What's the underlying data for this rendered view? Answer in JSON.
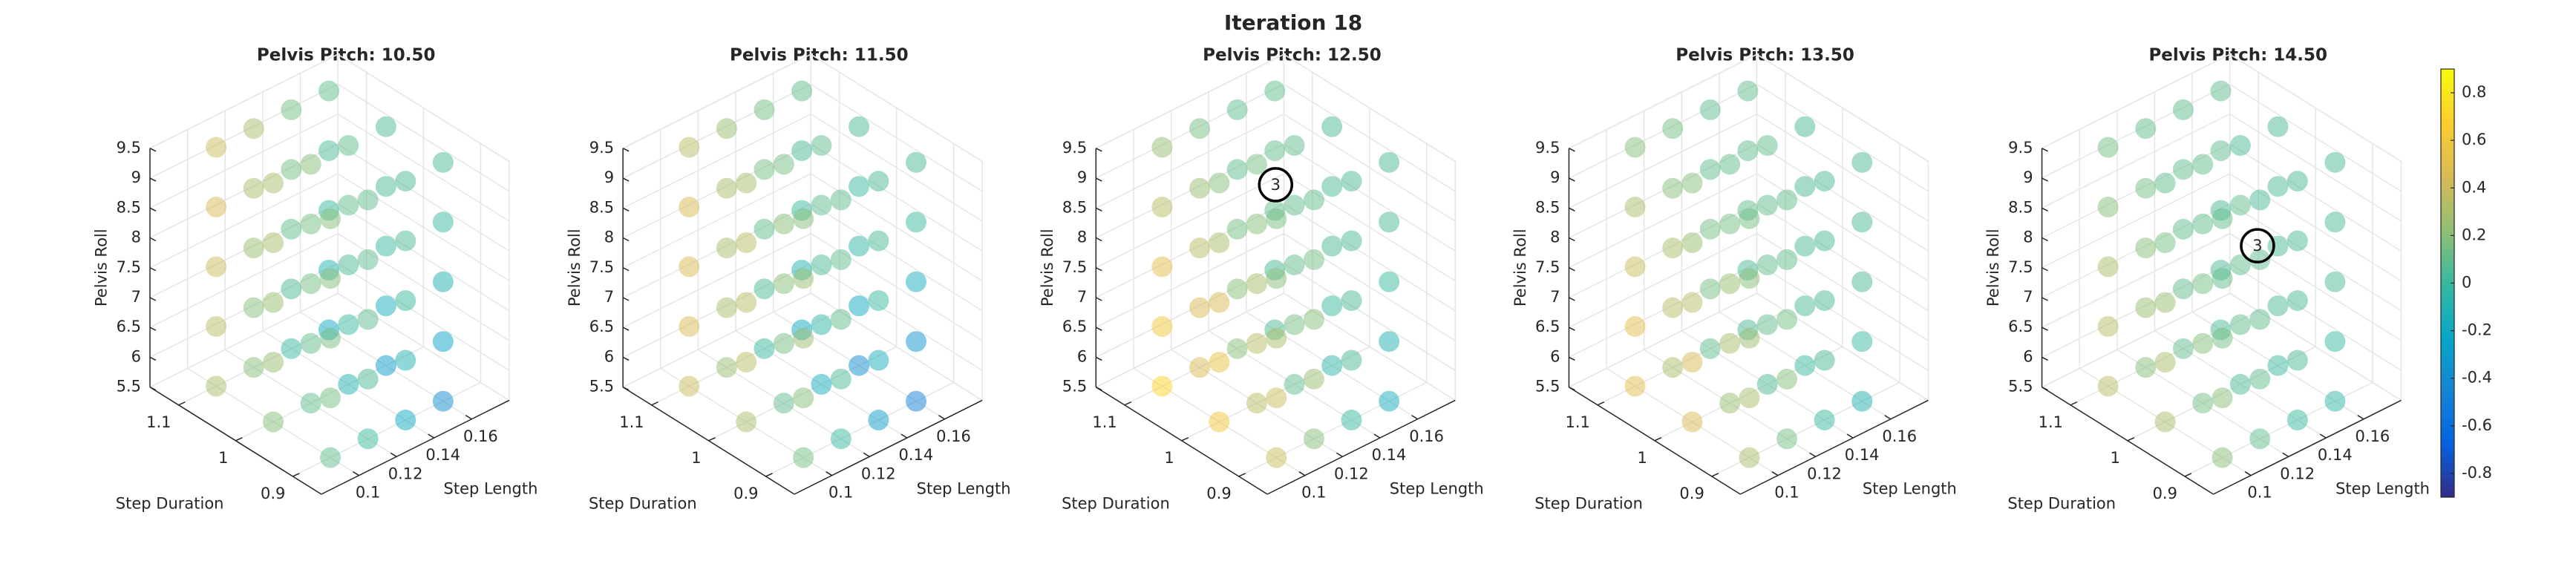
{
  "chart_data": {
    "type": "scatter3d",
    "title": "Iteration 18",
    "xlabel": "Step Length",
    "ylabel": "Step Duration",
    "zlabel": "Pelvis Roll",
    "xlim": [
      0.08,
      0.18
    ],
    "ylim": [
      0.85,
      1.15
    ],
    "zlim": [
      5.5,
      9.5
    ],
    "xticks": [
      0.1,
      0.12,
      0.14,
      0.16
    ],
    "yticks": [
      0.9,
      1,
      1.1
    ],
    "zticks": [
      5.5,
      6,
      6.5,
      7,
      7.5,
      8,
      8.5,
      9,
      9.5
    ],
    "grid": true,
    "step_length": [
      0.1,
      0.12,
      0.14,
      0.16
    ],
    "step_duration": [
      0.9,
      1,
      1.1
    ],
    "pelvis_roll": [
      5.5,
      6.5,
      7.5,
      8.5,
      9.5
    ],
    "colorbar": {
      "colormap": "parula",
      "clim": [
        -0.9,
        0.9
      ],
      "ticks": [
        -0.8,
        -0.6,
        -0.4,
        -0.2,
        0,
        0.2,
        0.4,
        0.6,
        0.8
      ]
    },
    "subplots": [
      {
        "title": "Pelvis Pitch: 10.50",
        "values": [
          [
            [
              0.1,
              0.0,
              -0.2,
              -0.4
            ],
            [
              0.2,
              0.1,
              -0.1,
              -0.3
            ],
            [
              0.3,
              0.2,
              0.0,
              -0.2
            ]
          ],
          [
            [
              0.15,
              0.05,
              -0.1,
              -0.25
            ],
            [
              0.25,
              0.1,
              0.0,
              -0.15
            ],
            [
              0.35,
              0.2,
              0.05,
              -0.1
            ]
          ],
          [
            [
              0.15,
              0.1,
              0.0,
              -0.1
            ],
            [
              0.25,
              0.15,
              0.05,
              0.0
            ],
            [
              0.4,
              0.25,
              0.1,
              0.0
            ]
          ],
          [
            [
              0.2,
              0.1,
              0.05,
              0.0
            ],
            [
              0.3,
              0.15,
              0.1,
              0.05
            ],
            [
              0.45,
              0.3,
              0.15,
              0.05
            ]
          ],
          [
            [
              0.2,
              0.1,
              0.05,
              0.05
            ],
            [
              0.3,
              0.2,
              0.1,
              0.05
            ],
            [
              0.4,
              0.3,
              0.15,
              0.1
            ]
          ]
        ]
      },
      {
        "title": "Pelvis Pitch: 11.50",
        "values": [
          [
            [
              0.15,
              0.0,
              -0.3,
              -0.5
            ],
            [
              0.3,
              0.1,
              -0.15,
              -0.4
            ],
            [
              0.4,
              0.25,
              0.0,
              -0.2
            ]
          ],
          [
            [
              0.2,
              0.05,
              -0.15,
              -0.35
            ],
            [
              0.35,
              0.15,
              -0.05,
              -0.2
            ],
            [
              0.45,
              0.3,
              0.05,
              -0.1
            ]
          ],
          [
            [
              0.25,
              0.1,
              0.0,
              -0.15
            ],
            [
              0.35,
              0.2,
              0.05,
              -0.05
            ],
            [
              0.45,
              0.3,
              0.1,
              0.0
            ]
          ],
          [
            [
              0.25,
              0.1,
              0.05,
              0.0
            ],
            [
              0.35,
              0.2,
              0.1,
              0.0
            ],
            [
              0.45,
              0.3,
              0.15,
              0.05
            ]
          ],
          [
            [
              0.2,
              0.1,
              0.05,
              0.05
            ],
            [
              0.3,
              0.15,
              0.1,
              0.05
            ],
            [
              0.35,
              0.25,
              0.15,
              0.1
            ]
          ]
        ]
      },
      {
        "title": "Pelvis Pitch: 12.50",
        "highlight": {
          "label": "3",
          "step_length": 0.13,
          "step_duration": 1,
          "pelvis_roll": 9
        },
        "values": [
          [
            [
              0.4,
              0.2,
              0.0,
              -0.15
            ],
            [
              0.6,
              0.35,
              0.1,
              -0.05
            ],
            [
              0.7,
              0.45,
              0.2,
              0.05
            ]
          ],
          [
            [
              0.4,
              0.25,
              0.05,
              -0.1
            ],
            [
              0.55,
              0.35,
              0.15,
              0.0
            ],
            [
              0.6,
              0.45,
              0.2,
              0.05
            ]
          ],
          [
            [
              0.3,
              0.2,
              0.05,
              0.0
            ],
            [
              0.45,
              0.3,
              0.1,
              0.05
            ],
            [
              0.5,
              0.35,
              0.15,
              0.1
            ]
          ],
          [
            [
              0.2,
              0.15,
              0.05,
              0.05
            ],
            [
              0.3,
              0.2,
              0.1,
              0.05
            ],
            [
              0.35,
              0.25,
              0.1,
              0.1
            ]
          ],
          [
            [
              0.15,
              0.1,
              0.05,
              0.05
            ],
            [
              0.2,
              0.15,
              0.1,
              0.05
            ],
            [
              0.25,
              0.15,
              0.1,
              0.1
            ]
          ]
        ]
      },
      {
        "title": "Pelvis Pitch: 13.50",
        "values": [
          [
            [
              0.3,
              0.15,
              0.0,
              -0.1
            ],
            [
              0.45,
              0.25,
              0.05,
              0.0
            ],
            [
              0.5,
              0.3,
              0.1,
              0.05
            ]
          ],
          [
            [
              0.3,
              0.2,
              0.05,
              0.0
            ],
            [
              0.45,
              0.3,
              0.1,
              0.05
            ],
            [
              0.5,
              0.35,
              0.15,
              0.05
            ]
          ],
          [
            [
              0.25,
              0.15,
              0.05,
              0.05
            ],
            [
              0.35,
              0.25,
              0.1,
              0.05
            ],
            [
              0.4,
              0.3,
              0.15,
              0.1
            ]
          ],
          [
            [
              0.2,
              0.1,
              0.05,
              0.05
            ],
            [
              0.25,
              0.15,
              0.1,
              0.05
            ],
            [
              0.3,
              0.2,
              0.1,
              0.1
            ]
          ],
          [
            [
              0.15,
              0.1,
              0.05,
              0.05
            ],
            [
              0.2,
              0.1,
              0.1,
              0.05
            ],
            [
              0.2,
              0.15,
              0.1,
              0.1
            ]
          ]
        ]
      },
      {
        "title": "Pelvis Pitch: 14.50",
        "highlight": {
          "label": "3",
          "step_length": 0.14,
          "step_duration": 0.97,
          "pelvis_roll": 8
        },
        "values": [
          [
            [
              0.2,
              0.1,
              0.0,
              -0.05
            ],
            [
              0.3,
              0.15,
              0.05,
              0.0
            ],
            [
              0.35,
              0.2,
              0.1,
              0.05
            ]
          ],
          [
            [
              0.2,
              0.1,
              0.05,
              0.0
            ],
            [
              0.3,
              0.2,
              0.1,
              0.05
            ],
            [
              0.35,
              0.25,
              0.1,
              0.05
            ]
          ],
          [
            [
              0.15,
              0.1,
              0.05,
              0.05
            ],
            [
              0.25,
              0.15,
              0.1,
              0.05
            ],
            [
              0.3,
              0.2,
              0.1,
              0.05
            ]
          ],
          [
            [
              0.1,
              0.1,
              0.05,
              0.05
            ],
            [
              0.15,
              0.1,
              0.1,
              0.05
            ],
            [
              0.2,
              0.15,
              0.1,
              0.1
            ]
          ],
          [
            [
              0.1,
              0.05,
              0.05,
              0.05
            ],
            [
              0.1,
              0.1,
              0.05,
              0.05
            ],
            [
              0.15,
              0.1,
              0.1,
              0.1
            ]
          ]
        ]
      }
    ]
  }
}
